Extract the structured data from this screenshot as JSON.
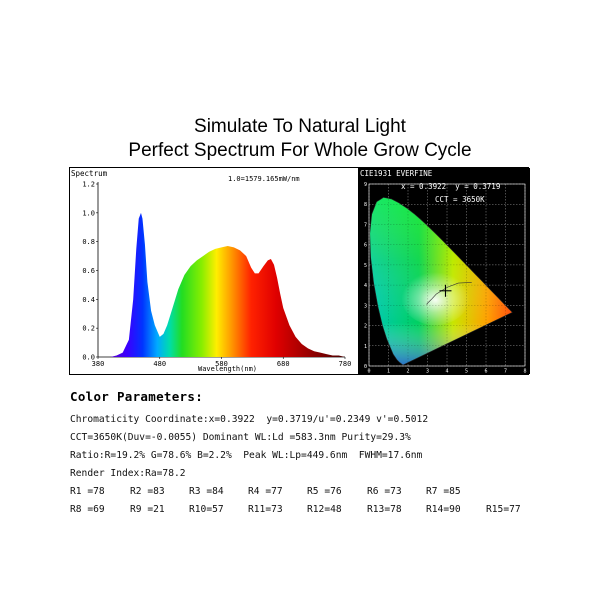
{
  "header": {
    "line1": "Simulate To Natural Light",
    "line2": "Perfect Spectrum For Whole Grow Cycle"
  },
  "chart_data": [
    {
      "type": "area",
      "title": "Spectrum",
      "scale_note": "1.0=1579.165mW/nm",
      "xlabel": "Wavelength(nm)",
      "ylabel": "",
      "xlim": [
        380,
        780
      ],
      "ylim": [
        0,
        1.2
      ],
      "x_ticks": [
        "380",
        "480",
        "580",
        "680",
        "780"
      ],
      "y_ticks": [
        "0.0",
        "0.2",
        "0.4",
        "0.6",
        "0.8",
        "1.0",
        "1.2"
      ],
      "fill": "visible-spectrum-gradient",
      "grid": false,
      "x": [
        380,
        400,
        410,
        420,
        430,
        437,
        442,
        446,
        449.6,
        452,
        456,
        460,
        466,
        472,
        480,
        486,
        492,
        500,
        510,
        520,
        530,
        540,
        550,
        560,
        570,
        580,
        590,
        600,
        610,
        620,
        628,
        634,
        640,
        648,
        655,
        660,
        665,
        670,
        675,
        680,
        690,
        700,
        710,
        720,
        730,
        740,
        750,
        760,
        770,
        780
      ],
      "values": [
        0.0,
        0.0,
        0.01,
        0.03,
        0.12,
        0.4,
        0.75,
        0.96,
        1.0,
        0.96,
        0.78,
        0.52,
        0.32,
        0.22,
        0.14,
        0.16,
        0.22,
        0.33,
        0.47,
        0.57,
        0.63,
        0.67,
        0.7,
        0.73,
        0.75,
        0.76,
        0.77,
        0.76,
        0.74,
        0.7,
        0.62,
        0.58,
        0.58,
        0.63,
        0.67,
        0.68,
        0.64,
        0.55,
        0.44,
        0.34,
        0.22,
        0.14,
        0.09,
        0.06,
        0.04,
        0.03,
        0.02,
        0.01,
        0.01,
        0.0
      ]
    },
    {
      "type": "scatter",
      "title": "CIE1931 EVERFINE",
      "coordinates_label": "x = 0.3922  y = 0.3719",
      "cct_label": "CCT = 3650K",
      "point": {
        "x": 0.3922,
        "y": 0.3719
      },
      "xlim": [
        0,
        0.8
      ],
      "ylim": [
        0,
        0.9
      ],
      "x_ticks": [
        "0",
        "1",
        "2",
        "3",
        "4",
        "5",
        "6",
        "7",
        "8"
      ],
      "y_ticks": [
        "0",
        "1",
        "2",
        "3",
        "4",
        "5",
        "6",
        "7",
        "8",
        "9"
      ],
      "spectral_locus": [
        [
          0.1741,
          0.005
        ],
        [
          0.1566,
          0.0177
        ],
        [
          0.144,
          0.0297
        ],
        [
          0.1241,
          0.0578
        ],
        [
          0.0913,
          0.1327
        ],
        [
          0.0687,
          0.2007
        ],
        [
          0.0454,
          0.295
        ],
        [
          0.0235,
          0.4127
        ],
        [
          0.0082,
          0.5384
        ],
        [
          0.0039,
          0.6548
        ],
        [
          0.0139,
          0.7502
        ],
        [
          0.0389,
          0.812
        ],
        [
          0.0743,
          0.8338
        ],
        [
          0.1142,
          0.8262
        ],
        [
          0.1547,
          0.8059
        ],
        [
          0.1929,
          0.7816
        ],
        [
          0.2296,
          0.7543
        ],
        [
          0.2658,
          0.7243
        ],
        [
          0.3016,
          0.6923
        ],
        [
          0.3373,
          0.6589
        ],
        [
          0.3731,
          0.6245
        ],
        [
          0.4087,
          0.5896
        ],
        [
          0.4441,
          0.5547
        ],
        [
          0.4788,
          0.5202
        ],
        [
          0.5125,
          0.4866
        ],
        [
          0.5448,
          0.4544
        ],
        [
          0.5752,
          0.4242
        ],
        [
          0.6029,
          0.3965
        ],
        [
          0.627,
          0.3725
        ],
        [
          0.6482,
          0.3514
        ],
        [
          0.6658,
          0.334
        ],
        [
          0.6915,
          0.3083
        ],
        [
          0.7347,
          0.2653
        ]
      ]
    }
  ],
  "color_parameters": {
    "heading": "Color Parameters:",
    "chromaticity": "Chromaticity Coordinate:x=0.3922  y=0.3719/u'=0.2349 v'=0.5012",
    "cct": "CCT=3650K(Duv=-0.0055) Dominant WL:Ld =583.3nm Purity=29.3%",
    "ratio": "Ratio:R=19.2% G=78.6% B=2.2%  Peak WL:Lp=449.6nm  FWHM=17.6nm",
    "render_index": "Render Index:Ra=78.2",
    "row1": [
      "R1 =78",
      "R2 =83",
      "R3 =84",
      "R4 =77",
      "R5 =76",
      "R6 =73",
      "R7 =85"
    ],
    "row2": [
      "R8 =69",
      "R9 =21",
      "R10=57",
      "R11=73",
      "R12=48",
      "R13=78",
      "R14=90",
      "R15=77"
    ]
  }
}
